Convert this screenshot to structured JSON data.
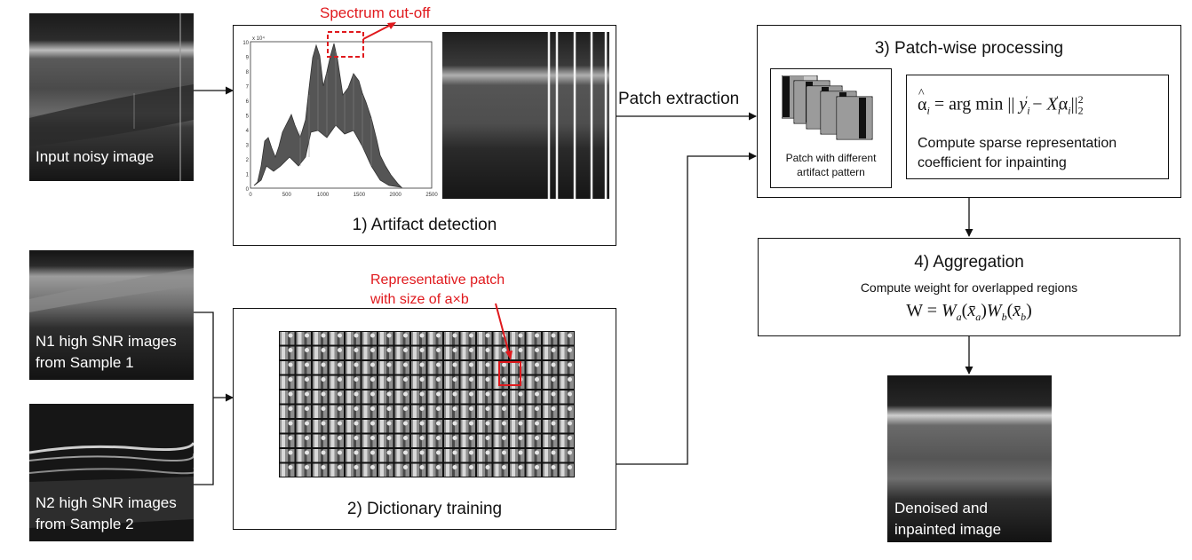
{
  "input": {
    "caption": "Input noisy image"
  },
  "sample1": {
    "caption": "N1 high SNR images\nfrom Sample 1"
  },
  "sample2": {
    "caption": "N2 high SNR images\nfrom Sample 2"
  },
  "step1": {
    "title": "1) Artifact detection",
    "callout": "Spectrum cut-off",
    "spectrum": {
      "y_exponent": "x 10⁴",
      "y_ticks": [
        "10",
        "9",
        "8",
        "7",
        "6",
        "5",
        "4",
        "3",
        "2",
        "1",
        "0"
      ],
      "x_ticks": [
        "0",
        "500",
        "1000",
        "1500",
        "2000",
        "2500"
      ]
    }
  },
  "step2": {
    "title": "2) Dictionary training",
    "callout": "Representative patch\nwith size of a×b"
  },
  "link": {
    "label": "Patch extraction"
  },
  "step3": {
    "title": "3) Patch-wise processing",
    "patch_caption": "Patch with different\nartifact pattern",
    "desc": "Compute sparse representation\ncoefficient for inpainting"
  },
  "step4": {
    "title": "4) Aggregation",
    "subtitle": "Compute weight for overlapped regions"
  },
  "output": {
    "caption": "Denoised and\ninpainted image"
  },
  "colors": {
    "accent": "#e0191d",
    "stroke": "#111111",
    "image_bg": "#0a0a0a"
  }
}
